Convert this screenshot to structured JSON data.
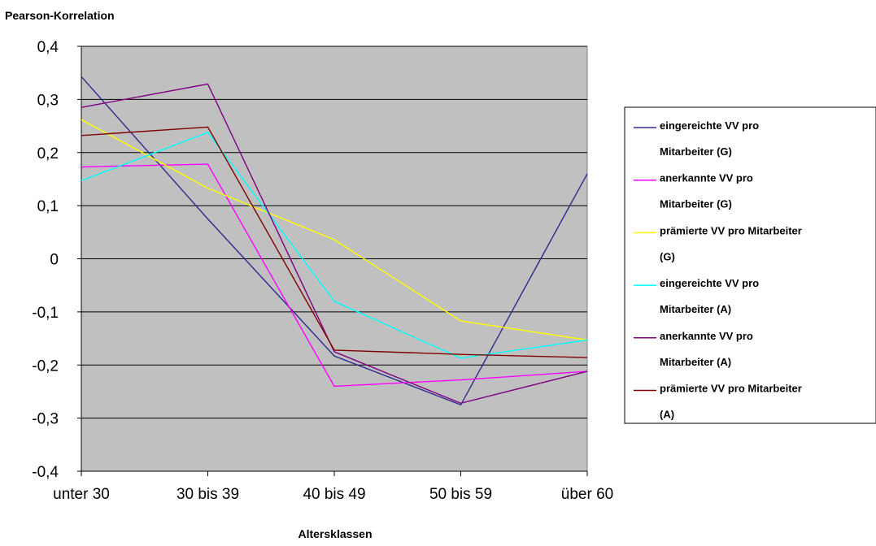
{
  "chart_data": {
    "type": "line",
    "title": "",
    "ylabel": "Pearson-Korrelation",
    "xlabel": "Altersklassen",
    "categories": [
      "unter 30",
      "30 bis 39",
      "40 bis 49",
      "50 bis 59",
      "über 60"
    ],
    "ylim": [
      -0.4,
      0.4
    ],
    "yticks": [
      0.4,
      0.3,
      0.2,
      0.1,
      0,
      -0.1,
      -0.2,
      -0.3,
      -0.4
    ],
    "ytick_labels": [
      "0,4",
      "0,3",
      "0,2",
      "0,1",
      "0",
      "-0,1",
      "-0,2",
      "-0,3",
      "-0,4"
    ],
    "grid": true,
    "legend_position": "right",
    "plot_background": "#c0c0c0",
    "series": [
      {
        "name_lines": [
          "eingereichte VV pro",
          "Mitarbeiter (G)"
        ],
        "color": "#2b2b8f",
        "values": [
          0.343,
          0.075,
          -0.183,
          -0.275,
          0.16
        ]
      },
      {
        "name_lines": [
          "anerkannte VV pro",
          "Mitarbeiter (G)"
        ],
        "color": "#ff00ff",
        "values": [
          0.173,
          0.178,
          -0.24,
          -0.228,
          -0.212
        ]
      },
      {
        "name_lines": [
          "prämierte VV pro Mitarbeiter",
          "(G)"
        ],
        "color": "#ffff00",
        "values": [
          0.262,
          0.133,
          0.036,
          -0.117,
          -0.153
        ]
      },
      {
        "name_lines": [
          "eingereichte VV pro",
          "Mitarbeiter (A)"
        ],
        "color": "#00ffff",
        "values": [
          0.147,
          0.238,
          -0.08,
          -0.187,
          -0.153
        ]
      },
      {
        "name_lines": [
          "anerkannte VV pro",
          "Mitarbeiter (A)"
        ],
        "color": "#800080",
        "values": [
          0.285,
          0.329,
          -0.175,
          -0.272,
          -0.212
        ]
      },
      {
        "name_lines": [
          "prämierte VV pro Mitarbeiter",
          "(A)"
        ],
        "color": "#800000",
        "values": [
          0.232,
          0.248,
          -0.172,
          -0.18,
          -0.186
        ]
      }
    ]
  }
}
